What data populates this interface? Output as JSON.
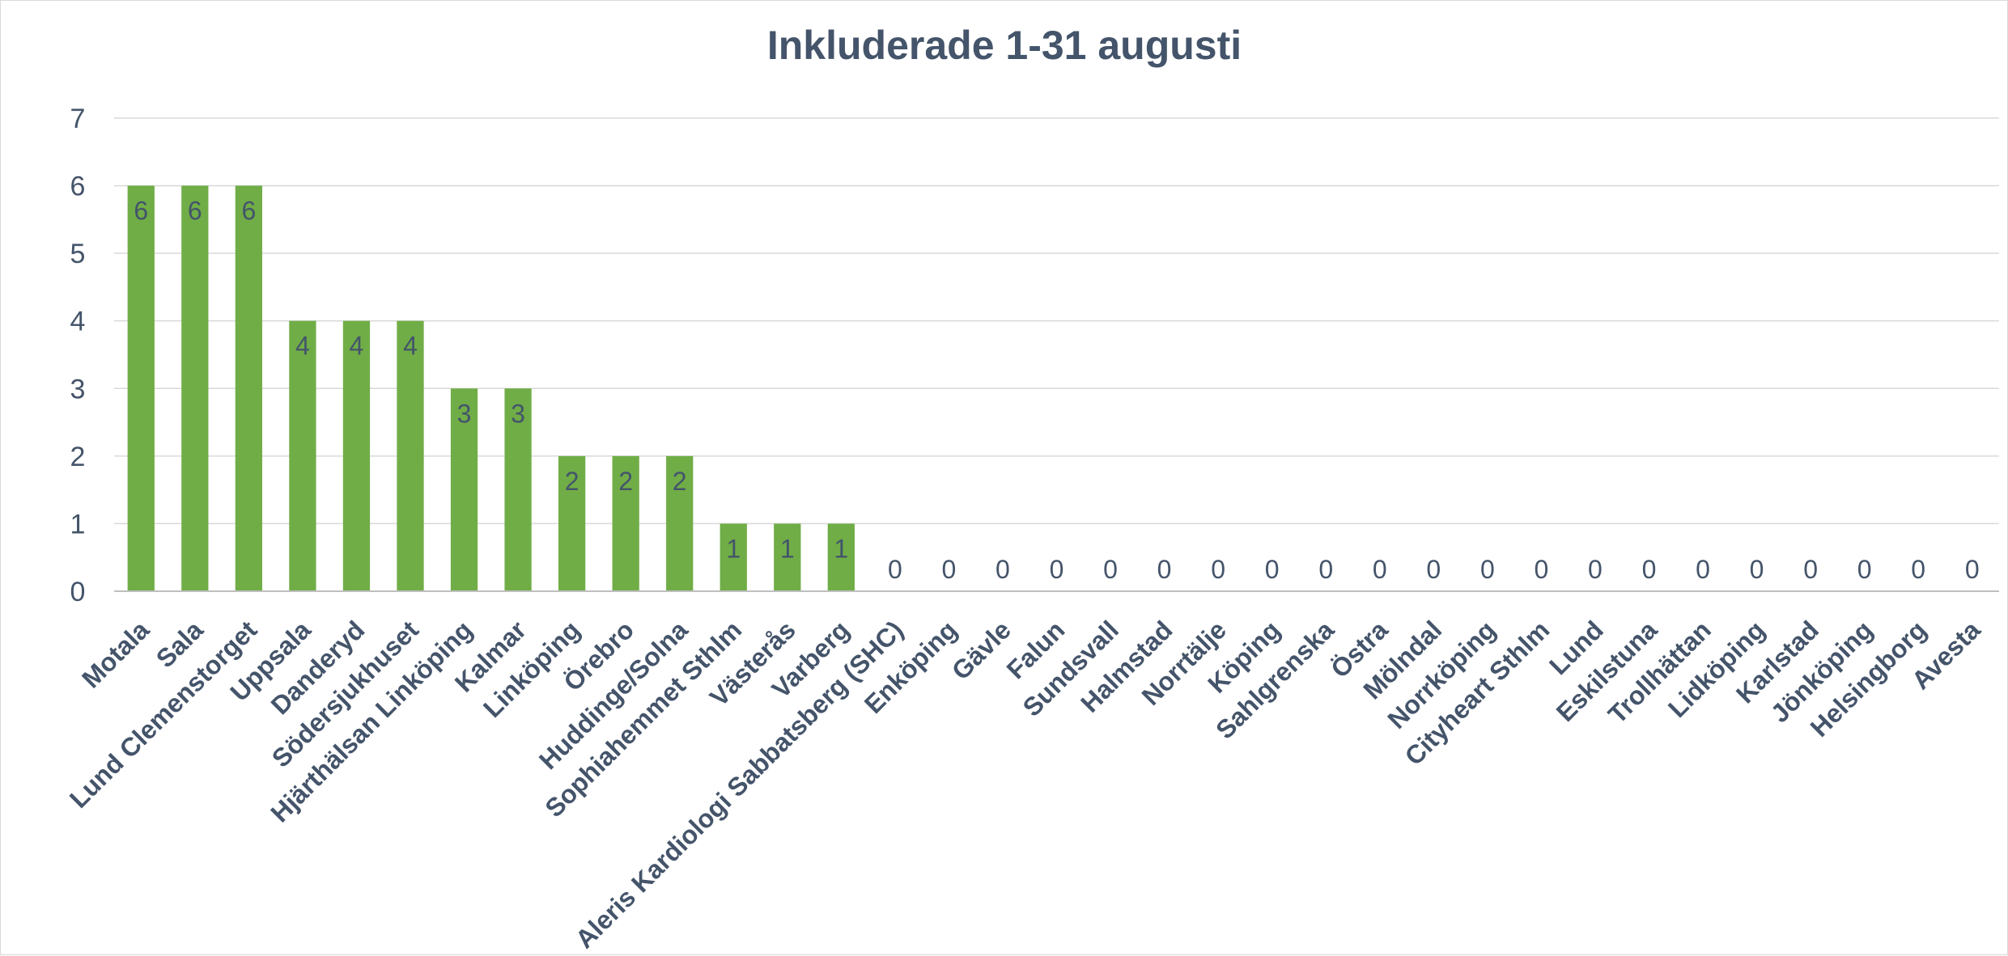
{
  "chart_data": {
    "type": "bar",
    "title": "Inkluderade 1-31 augusti",
    "xlabel": "",
    "ylabel": "",
    "ylim": [
      0,
      7
    ],
    "yticks": [
      0,
      1,
      2,
      3,
      4,
      5,
      6,
      7
    ],
    "grid": true,
    "legend": "none",
    "bar_color": "#70ad47",
    "text_color": "#44546a",
    "categories": [
      "Motala",
      "Sala",
      "Lund Clemenstorget",
      "Uppsala",
      "Danderyd",
      "Södersjukhuset",
      "Hjärthälsan Linköping",
      "Kalmar",
      "Linköping",
      "Örebro",
      "Huddinge/Solna",
      "Sophiahemmet Sthlm",
      "Västerås",
      "Varberg",
      "Aleris Kardiologi Sabbatsberg (SHC)",
      "Enköping",
      "Gävle",
      "Falun",
      "Sundsvall",
      "Halmstad",
      "Norrtälje",
      "Köping",
      "Sahlgrenska",
      "Östra",
      "Mölndal",
      "Norrköping",
      "Cityheart Sthlm",
      "Lund",
      "Eskilstuna",
      "Trollhättan",
      "Lidköping",
      "Karlstad",
      "Jönköping",
      "Helsingborg",
      "Avesta"
    ],
    "values": [
      6,
      6,
      6,
      4,
      4,
      4,
      3,
      3,
      2,
      2,
      2,
      1,
      1,
      1,
      0,
      0,
      0,
      0,
      0,
      0,
      0,
      0,
      0,
      0,
      0,
      0,
      0,
      0,
      0,
      0,
      0,
      0,
      0,
      0,
      0
    ]
  }
}
